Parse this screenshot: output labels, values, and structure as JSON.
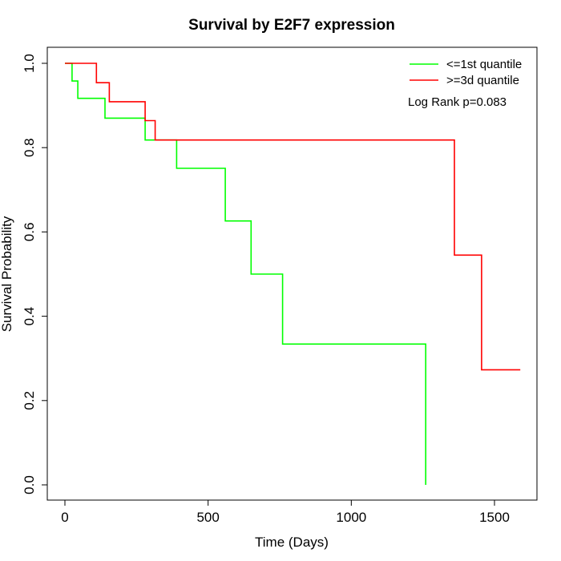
{
  "chart_data": {
    "type": "line",
    "title": "Survival by E2F7 expression",
    "xlabel": "Time (Days)",
    "ylabel": "Survival Probability",
    "xlim": [
      0,
      1650
    ],
    "ylim": [
      0,
      1.0
    ],
    "xticks": [
      0,
      500,
      1000,
      1500
    ],
    "xtick_labels": [
      "0",
      "500",
      "1000",
      "1500"
    ],
    "yticks": [
      0.0,
      0.2,
      0.4,
      0.6,
      0.8,
      1.0
    ],
    "ytick_labels": [
      "0.0",
      "0.2",
      "0.4",
      "0.6",
      "0.8",
      "1.0"
    ],
    "grid": false,
    "legend_position": "top-right",
    "annotation": "Log Rank p=0.083",
    "series": [
      {
        "name": "<=1st quantile",
        "color": "#00ff00",
        "step": true,
        "x": [
          0,
          25,
          25,
          45,
          45,
          140,
          140,
          280,
          280,
          390,
          390,
          560,
          560,
          650,
          650,
          760,
          760,
          1260,
          1260
        ],
        "y": [
          1.0,
          1.0,
          0.958,
          0.958,
          0.917,
          0.917,
          0.87,
          0.87,
          0.818,
          0.818,
          0.751,
          0.751,
          0.626,
          0.626,
          0.5,
          0.5,
          0.334,
          0.334,
          0.0
        ]
      },
      {
        "name": ">=3d quantile",
        "color": "#ff0000",
        "step": true,
        "x": [
          0,
          110,
          110,
          155,
          155,
          280,
          280,
          315,
          315,
          1360,
          1360,
          1455,
          1455,
          1590
        ],
        "y": [
          1.0,
          1.0,
          0.954,
          0.954,
          0.909,
          0.909,
          0.864,
          0.864,
          0.818,
          0.818,
          0.545,
          0.545,
          0.273,
          0.273
        ]
      }
    ]
  }
}
